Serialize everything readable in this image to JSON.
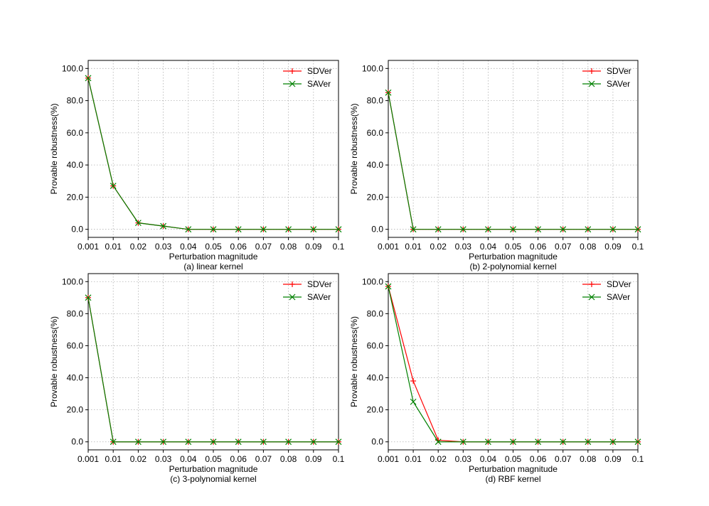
{
  "colors": {
    "SDVer": "#ff0000",
    "SAVer": "#008000",
    "grid": "#b0b0b0",
    "axis": "#000000"
  },
  "chart_data": [
    {
      "type": "line",
      "caption": "(a) linear kernel",
      "xlabel": "Perturbation magnitude",
      "ylabel": "Provable robustness(%)",
      "categories": [
        "0.001",
        "0.01",
        "0.02",
        "0.03",
        "0.04",
        "0.05",
        "0.06",
        "0.07",
        "0.08",
        "0.09",
        "0.1"
      ],
      "yticks": [
        "0.0",
        "20.0",
        "40.0",
        "60.0",
        "80.0",
        "100.0"
      ],
      "ylim": [
        -5,
        105
      ],
      "grid": true,
      "legend": "top-right",
      "series": [
        {
          "name": "SDVer",
          "marker": "+",
          "values": [
            94,
            27,
            4,
            2,
            0,
            0,
            0,
            0,
            0,
            0,
            0
          ]
        },
        {
          "name": "SAVer",
          "marker": "x",
          "values": [
            94,
            27,
            4,
            2,
            0,
            0,
            0,
            0,
            0,
            0,
            0
          ]
        }
      ]
    },
    {
      "type": "line",
      "caption": "(b) 2-polynomial kernel",
      "xlabel": "Perturbation magnitude",
      "ylabel": "Provable robustness(%)",
      "categories": [
        "0.001",
        "0.01",
        "0.02",
        "0.03",
        "0.04",
        "0.05",
        "0.06",
        "0.07",
        "0.08",
        "0.09",
        "0.1"
      ],
      "yticks": [
        "0.0",
        "20.0",
        "40.0",
        "60.0",
        "80.0",
        "100.0"
      ],
      "ylim": [
        -5,
        105
      ],
      "grid": true,
      "legend": "top-right",
      "series": [
        {
          "name": "SDVer",
          "marker": "+",
          "values": [
            85,
            0,
            0,
            0,
            0,
            0,
            0,
            0,
            0,
            0,
            0
          ]
        },
        {
          "name": "SAVer",
          "marker": "x",
          "values": [
            85,
            0,
            0,
            0,
            0,
            0,
            0,
            0,
            0,
            0,
            0
          ]
        }
      ]
    },
    {
      "type": "line",
      "caption": "(c) 3-polynomial kernel",
      "xlabel": "Perturbation magnitude",
      "ylabel": "Provable robustness(%)",
      "categories": [
        "0.001",
        "0.01",
        "0.02",
        "0.03",
        "0.04",
        "0.05",
        "0.06",
        "0.07",
        "0.08",
        "0.09",
        "0.1"
      ],
      "yticks": [
        "0.0",
        "20.0",
        "40.0",
        "60.0",
        "80.0",
        "100.0"
      ],
      "ylim": [
        -5,
        105
      ],
      "grid": true,
      "legend": "top-right",
      "series": [
        {
          "name": "SDVer",
          "marker": "+",
          "values": [
            90,
            0,
            0,
            0,
            0,
            0,
            0,
            0,
            0,
            0,
            0
          ]
        },
        {
          "name": "SAVer",
          "marker": "x",
          "values": [
            90,
            0,
            0,
            0,
            0,
            0,
            0,
            0,
            0,
            0,
            0
          ]
        }
      ]
    },
    {
      "type": "line",
      "caption": "(d) RBF kernel",
      "xlabel": "Perturbation magnitude",
      "ylabel": "Provable robustness(%)",
      "categories": [
        "0.001",
        "0.01",
        "0.02",
        "0.03",
        "0.04",
        "0.05",
        "0.06",
        "0.07",
        "0.08",
        "0.09",
        "0.1"
      ],
      "yticks": [
        "0.0",
        "20.0",
        "40.0",
        "60.0",
        "80.0",
        "100.0"
      ],
      "ylim": [
        -5,
        105
      ],
      "grid": true,
      "legend": "top-right",
      "series": [
        {
          "name": "SDVer",
          "marker": "+",
          "values": [
            97,
            38,
            1,
            0,
            0,
            0,
            0,
            0,
            0,
            0,
            0
          ]
        },
        {
          "name": "SAVer",
          "marker": "x",
          "values": [
            97,
            25,
            0,
            0,
            0,
            0,
            0,
            0,
            0,
            0,
            0
          ]
        }
      ]
    }
  ]
}
